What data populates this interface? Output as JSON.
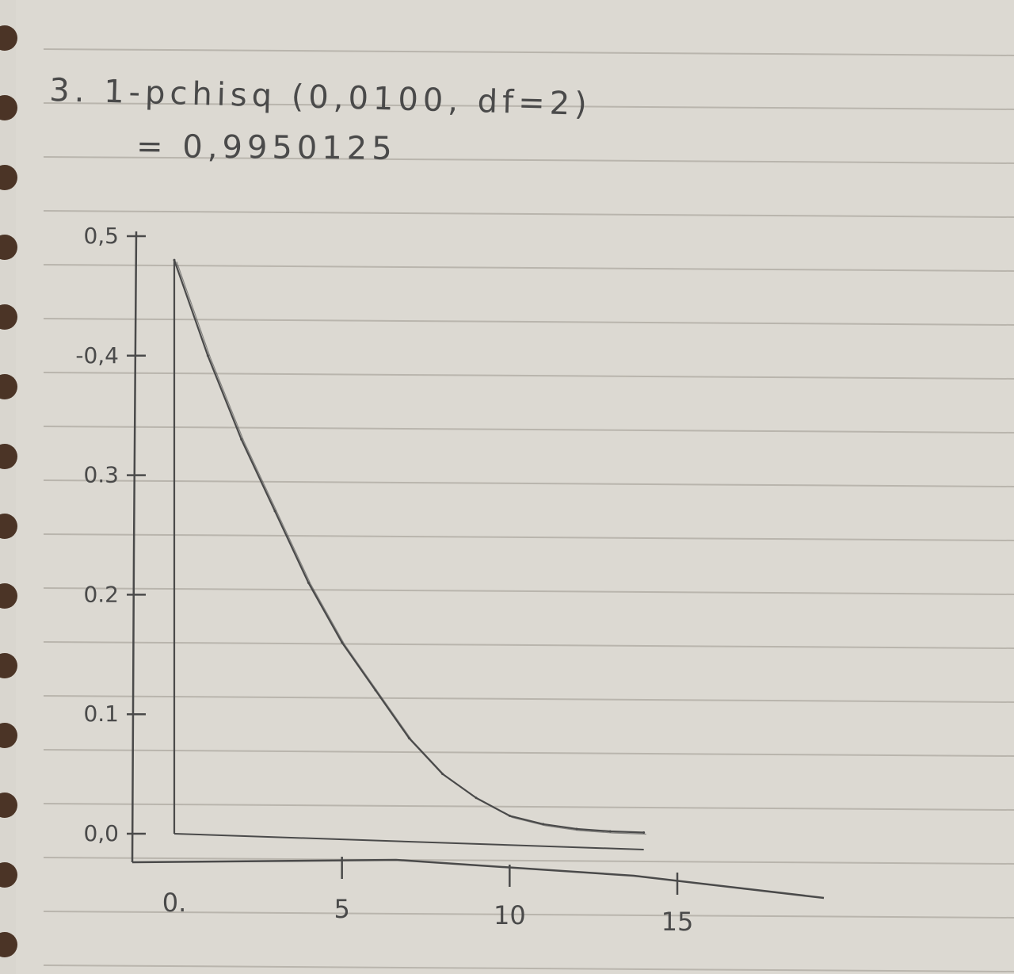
{
  "note": {
    "line1": "3. 1-pchisq (0,0100, df=2)",
    "line2": "= 0,9950125"
  },
  "chart_data": {
    "type": "line",
    "title": "",
    "xlabel": "",
    "ylabel": "",
    "xlim": [
      0,
      15
    ],
    "ylim": [
      0.0,
      0.5
    ],
    "x_ticks": [
      {
        "value": 0,
        "label": "0."
      },
      {
        "value": 5,
        "label": "5"
      },
      {
        "value": 10,
        "label": "10"
      },
      {
        "value": 15,
        "label": "15"
      }
    ],
    "y_ticks": [
      {
        "value": 0.0,
        "label": "0,0"
      },
      {
        "value": 0.1,
        "label": "0.1"
      },
      {
        "value": 0.2,
        "label": "0.2"
      },
      {
        "value": 0.3,
        "label": "0.3"
      },
      {
        "value": 0.4,
        "label": "-0,4"
      },
      {
        "value": 0.5,
        "label": "0,5"
      }
    ],
    "series": [
      {
        "x": [
          0,
          1,
          2,
          3,
          4,
          5,
          6,
          7,
          8,
          9,
          10,
          11,
          12,
          13,
          14
        ],
        "y": [
          0.48,
          0.4,
          0.33,
          0.27,
          0.21,
          0.16,
          0.12,
          0.08,
          0.05,
          0.03,
          0.015,
          0.008,
          0.004,
          0.002,
          0.001
        ]
      }
    ],
    "color": "#4a4a4a"
  }
}
